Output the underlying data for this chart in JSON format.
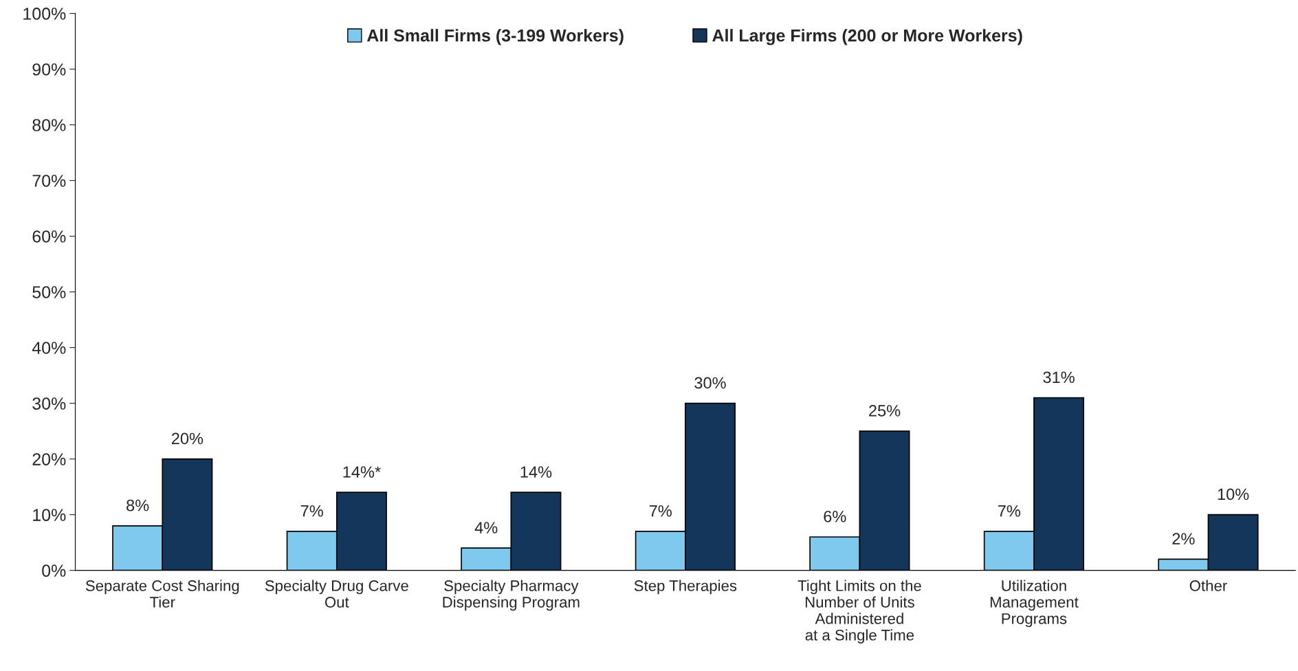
{
  "chart_data": {
    "type": "bar",
    "categories": [
      "Separate Cost Sharing\nTier",
      "Specialty Drug Carve\nOut",
      "Specialty Pharmacy\nDispensing Program",
      "Step Therapies",
      "Tight Limits on the\nNumber of Units\nAdministered\nat a Single Time",
      "Utilization\nManagement\nPrograms",
      "Other"
    ],
    "series": [
      {
        "name": "All Small Firms (3-199 Workers)",
        "color": "#7fc8ee",
        "values": [
          8,
          7,
          4,
          7,
          6,
          7,
          2
        ],
        "value_labels": [
          "8%",
          "7%",
          "4%",
          "7%",
          "6%",
          "7%",
          "2%"
        ]
      },
      {
        "name": "All Large Firms (200 or More Workers)",
        "color": "#14365a",
        "values": [
          20,
          14,
          14,
          30,
          25,
          31,
          10
        ],
        "value_labels": [
          "20%",
          "14%*",
          "14%",
          "30%",
          "25%",
          "31%",
          "10%"
        ]
      }
    ],
    "ylim": [
      0,
      100
    ],
    "yticks": [
      {
        "value": 0,
        "label": "0%"
      },
      {
        "value": 10,
        "label": "10%"
      },
      {
        "value": 20,
        "label": "20%"
      },
      {
        "value": 30,
        "label": "30%"
      },
      {
        "value": 40,
        "label": "40%"
      },
      {
        "value": 50,
        "label": "50%"
      },
      {
        "value": 60,
        "label": "60%"
      },
      {
        "value": 70,
        "label": "70%"
      },
      {
        "value": 80,
        "label": "80%"
      },
      {
        "value": 90,
        "label": "90%"
      },
      {
        "value": 100,
        "label": "100%"
      }
    ],
    "legend": "top",
    "grid": false
  }
}
